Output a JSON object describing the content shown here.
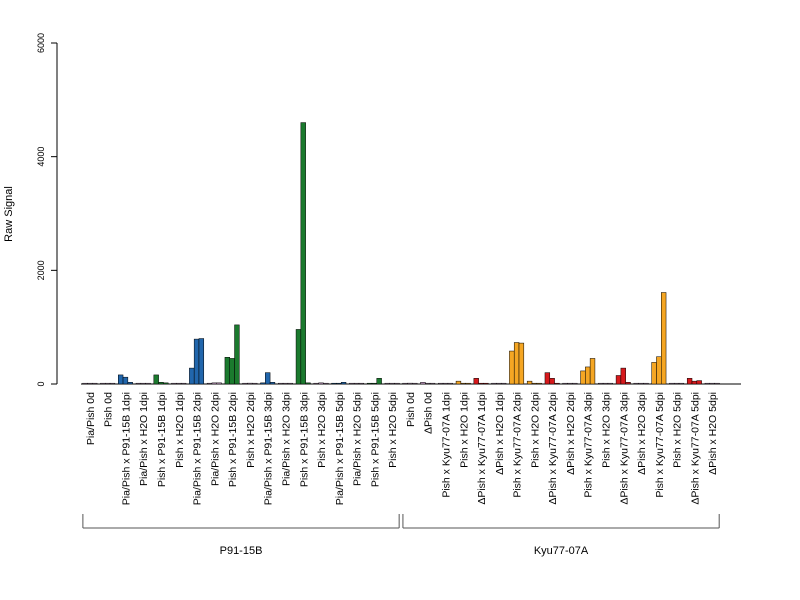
{
  "chart_data": {
    "type": "bar",
    "ylabel": "Raw Signal",
    "xlabel": "",
    "ylim": [
      0,
      6000
    ],
    "yticks": [
      0,
      2000,
      4000,
      6000
    ],
    "grid": false,
    "colors": {
      "P91-15B_high": "#2166ac",
      "P91-15B_low": "#1b7a2e",
      "Kyu77-07A_high": "#f5a623",
      "Kyu77-07A_low": "#d7191c",
      "baseline": "#c8a0c8"
    },
    "categories": [
      "Pia/Pish 0d",
      "Pish 0d",
      "Pia/Pish x P91-15B 1dpi",
      "Pia/Pish x H2O 1dpi",
      "Pish x P91-15B 1dpi",
      "Pish x H2O 1dpi",
      "Pia/Pish x P91-15B 2dpi",
      "Pia/Pish x H2O 2dpi",
      "Pish x P91-15B 2dpi",
      "Pish x H2O 2dpi",
      "Pia/Pish x P91-15B 3dpi",
      "Pia/Pish x H2O 3dpi",
      "Pish x P91-15B 3dpi",
      "Pish x H2O 3dpi",
      "Pia/Pish x P91-15B 5dpi",
      "Pia/Pish x H2O 5dpi",
      "Pish x P91-15B 5dpi",
      "Pish x H2O 5dpi",
      "Pish 0d",
      "ΔPish 0d",
      "Pish x Kyu77-07A 1dpi",
      "Pish x H2O 1dpi",
      "ΔPish x Kyu77-07A 1dpi",
      "ΔPish x H2O 1dpi",
      "Pish x Kyu77-07A 2dpi",
      "Pish x H2O 2dpi",
      "ΔPish x Kyu77-07A 2dpi",
      "ΔPish x H2O 2dpi",
      "Pish x Kyu77-07A 3dpi",
      "Pish x H2O 3dpi",
      "ΔPish x Kyu77-07A 3dpi",
      "ΔPish x H2O 3dpi",
      "Pish x Kyu77-07A 5dpi",
      "Pish x H2O 5dpi",
      "ΔPish x Kyu77-07A 5dpi",
      "ΔPish x H2O 5dpi"
    ],
    "bars": [
      {
        "values": [
          5,
          5,
          5
        ],
        "color": "#c8a0c8"
      },
      {
        "values": [
          5,
          5,
          5
        ],
        "color": "#c8a0c8"
      },
      {
        "values": [
          160,
          120,
          30
        ],
        "color": "#2166ac"
      },
      {
        "values": [
          5,
          5,
          5
        ],
        "color": "#c8a0c8"
      },
      {
        "values": [
          160,
          30,
          20
        ],
        "color": "#1b7a2e"
      },
      {
        "values": [
          5,
          5,
          5
        ],
        "color": "#c8a0c8"
      },
      {
        "values": [
          280,
          790,
          800
        ],
        "color": "#2166ac"
      },
      {
        "values": [
          10,
          20,
          20
        ],
        "color": "#c8a0c8"
      },
      {
        "values": [
          470,
          450,
          1040
        ],
        "color": "#1b7a2e"
      },
      {
        "values": [
          10,
          15,
          10
        ],
        "color": "#c8a0c8"
      },
      {
        "values": [
          20,
          200,
          30
        ],
        "color": "#2166ac"
      },
      {
        "values": [
          5,
          5,
          5
        ],
        "color": "#c8a0c8"
      },
      {
        "values": [
          960,
          4600,
          20
        ],
        "color": "#1b7a2e"
      },
      {
        "values": [
          10,
          20,
          10
        ],
        "color": "#c8a0c8"
      },
      {
        "values": [
          10,
          10,
          30
        ],
        "color": "#2166ac"
      },
      {
        "values": [
          5,
          5,
          5
        ],
        "color": "#c8a0c8"
      },
      {
        "values": [
          10,
          10,
          100
        ],
        "color": "#1b7a2e"
      },
      {
        "values": [
          5,
          5,
          5
        ],
        "color": "#c8a0c8"
      },
      {
        "values": [
          10,
          15,
          5
        ],
        "color": "#c8a0c8"
      },
      {
        "values": [
          30,
          10,
          5
        ],
        "color": "#c8a0c8"
      },
      {
        "values": [
          10,
          5,
          5
        ],
        "color": "#c8a0c8"
      },
      {
        "values": [
          50,
          10,
          5
        ],
        "color": "#f5a623"
      },
      {
        "values": [
          100,
          10,
          5
        ],
        "color": "#d7191c"
      },
      {
        "values": [
          5,
          5,
          5
        ],
        "color": "#c8a0c8"
      },
      {
        "values": [
          580,
          730,
          720
        ],
        "color": "#f5a623"
      },
      {
        "values": [
          50,
          10,
          5
        ],
        "color": "#f5a623"
      },
      {
        "values": [
          200,
          100,
          10
        ],
        "color": "#d7191c"
      },
      {
        "values": [
          5,
          5,
          5
        ],
        "color": "#c8a0c8"
      },
      {
        "values": [
          230,
          300,
          450
        ],
        "color": "#f5a623"
      },
      {
        "values": [
          10,
          5,
          5
        ],
        "color": "#c8a0c8"
      },
      {
        "values": [
          150,
          280,
          30
        ],
        "color": "#d7191c"
      },
      {
        "values": [
          5,
          5,
          5
        ],
        "color": "#c8a0c8"
      },
      {
        "values": [
          380,
          480,
          1610
        ],
        "color": "#f5a623"
      },
      {
        "values": [
          10,
          5,
          5
        ],
        "color": "#c8a0c8"
      },
      {
        "values": [
          100,
          50,
          60
        ],
        "color": "#d7191c"
      },
      {
        "values": [
          5,
          5,
          5
        ],
        "color": "#c8a0c8"
      }
    ],
    "groups": [
      {
        "label": "P91-15B",
        "first": 0,
        "last": 17
      },
      {
        "label": "Kyu77-07A",
        "first": 18,
        "last": 35
      }
    ]
  }
}
